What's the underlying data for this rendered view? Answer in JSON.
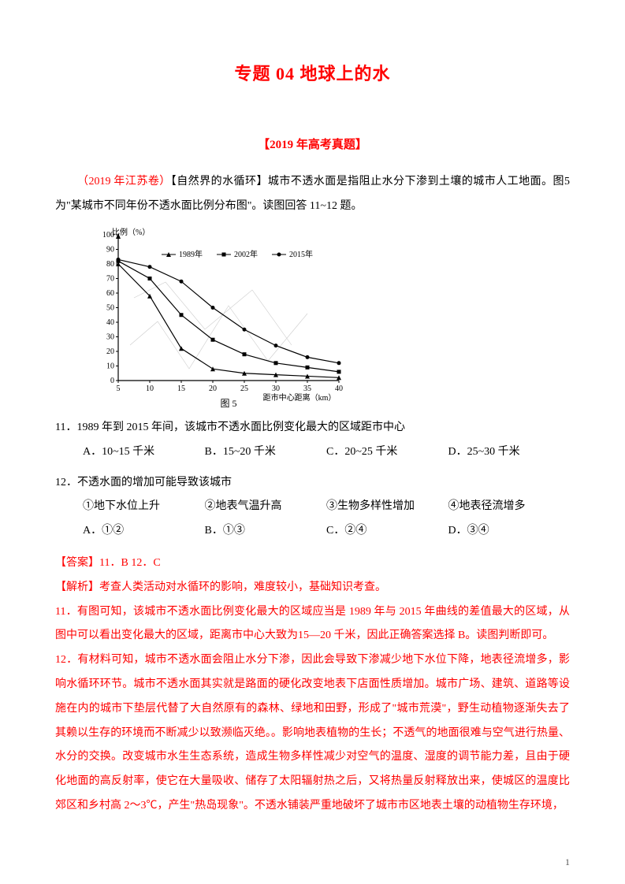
{
  "title": "专题 04  地球上的水",
  "section_header": "【2019 年高考真题】",
  "source_tag": "（2019 年江苏卷）",
  "intro_rest": "【自然界的水循环】城市不透水面是指阻止水分下渗到土壤的城市人工地面。图5 为\"某城市不同年份不透水面比例分布图\"。读图回答 11~12 题。",
  "chart": {
    "type": "line",
    "y_label": "比例（%）",
    "x_label": "距市中心距离（km）",
    "y_max": 100,
    "y_ticks": [
      0,
      10,
      20,
      30,
      40,
      50,
      60,
      70,
      80,
      90,
      100
    ],
    "x_ticks": [
      5,
      10,
      15,
      20,
      25,
      30,
      35,
      40
    ],
    "legend": [
      "1989年",
      "2002年",
      "2015年"
    ],
    "series": {
      "1989": [
        80,
        58,
        22,
        8,
        5,
        4,
        3,
        2
      ],
      "2002": [
        82,
        70,
        45,
        28,
        18,
        12,
        9,
        6
      ],
      "2015": [
        83,
        78,
        68,
        50,
        35,
        24,
        16,
        12
      ]
    },
    "colors": {
      "axis": "#000000",
      "grid": "#bbbbbb",
      "line": "#000000",
      "bg": "#ffffff",
      "text": "#000000"
    },
    "font_size": 10,
    "caption": "图 5"
  },
  "q11": {
    "stem": "11．1989 年到 2015 年间，该城市不透水面比例变化最大的区域距市中心",
    "opts": {
      "A": "A．10~15 千米",
      "B": "B．15~20 千米",
      "C": "C．20~25 千米",
      "D": "D．25~30 千米"
    }
  },
  "q12": {
    "stem": "12．不透水面的增加可能导致该城市",
    "circled": {
      "1": "①地下水位上升",
      "2": "②地表气温升高",
      "3": "③生物多样性增加",
      "4": "④地表径流增多"
    },
    "opts": {
      "A": "A．①②",
      "B": "B．①③",
      "C": "C．②④",
      "D": "D．③④"
    }
  },
  "answer": "【答案】11．B  12．C",
  "analysis_head": "【解析】考查人类活动对水循环的影响，难度较小，基础知识考查。",
  "analysis_11": "11．有图可知，该城市不透水面比例变化最大的区域应当是 1989 年与 2015 年曲线的差值最大的区域，从图中可以看出变化最大的区域，距离市中心大致为15—20 千米，因此正确答案选择 B。读图判断即可。",
  "analysis_12": "12．有材料可知，城市不透水面会阻止水分下渗，因此会导致下渗减少地下水位下降，地表径流增多，影响水循环环节。城市不透水面其实就是路面的硬化改变地表下店面性质增加。城市广场、建筑、道路等设施在内的城市下垫层代替了大自然原有的森林、绿地和田野，形成了\"城市荒漠\"，野生动植物逐渐失去了其赖以生存的环境而不断减少以致濒临灭绝。。影响地表植物的生长；不透气的地面很难与空气进行热量、水分的交换。改变城市水生生态系统，造成生物多样性减少对空气的温度、湿度的调节能力差，且由于硬化地面的高反射率，使它在大量吸收、储存了太阳辐射热之后，又将热量反射释放出来，使城区的温度比郊区和乡村高 2～3℃，产生\"热岛现象\"。不透水铺装严重地破坏了城市市区地表土壤的动植物生存环境，",
  "page_number": "1"
}
